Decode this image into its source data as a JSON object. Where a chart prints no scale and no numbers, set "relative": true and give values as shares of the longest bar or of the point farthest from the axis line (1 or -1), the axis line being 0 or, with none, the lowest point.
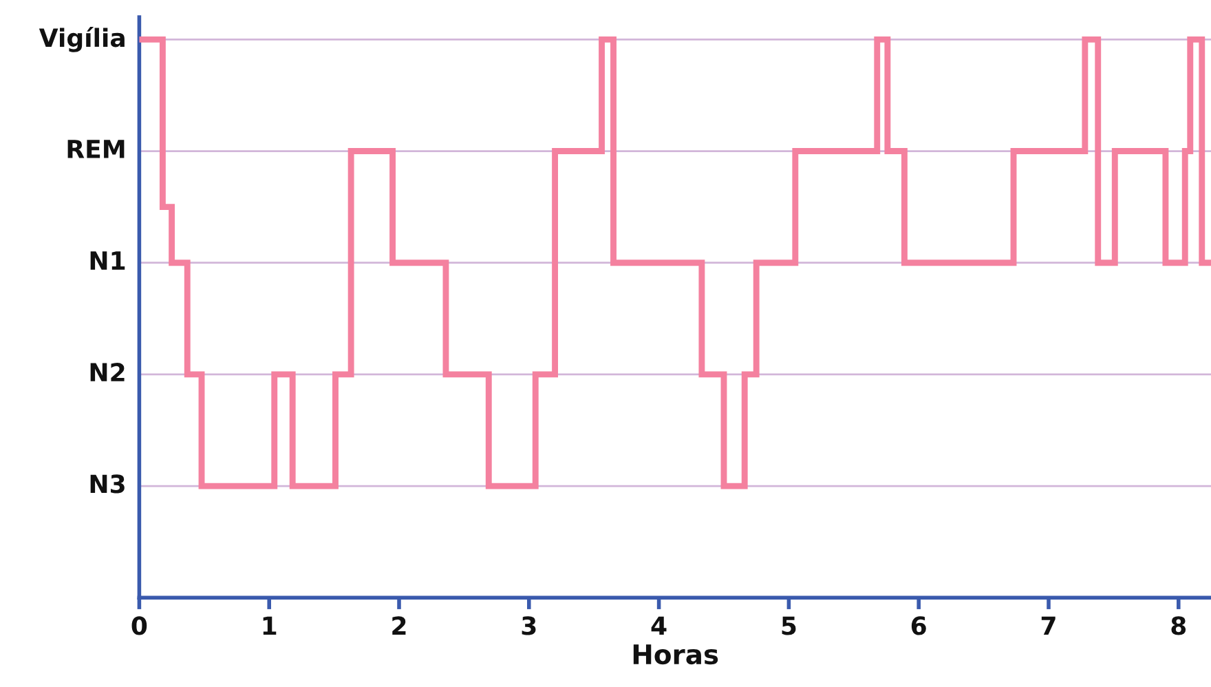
{
  "chart_data": {
    "type": "step",
    "xlabel": "Horas",
    "relative": true,
    "x": [
      0,
      0.18,
      0.25,
      0.37,
      0.48,
      1.04,
      1.18,
      1.51,
      1.63,
      1.95,
      2.36,
      2.69,
      3.05,
      3.2,
      3.56,
      3.65,
      4.33,
      4.5,
      4.66,
      4.75,
      5.05,
      5.68,
      5.76,
      5.89,
      6.73,
      7.28,
      7.38,
      7.51,
      7.9,
      8.05,
      8.09,
      8.18,
      8.25
    ],
    "series": [
      {
        "color": "#f4819f",
        "values": [
          1,
          0.7,
          0.6,
          0.4,
          0.2,
          0.4,
          0.2,
          0.4,
          0.8,
          0.6,
          0.4,
          0.2,
          0.4,
          0.8,
          1,
          0.6,
          0.4,
          0.2,
          0.4,
          0.6,
          0.8,
          1,
          0.8,
          0.6,
          0.8,
          1,
          0.6,
          0.8,
          0.6,
          0.8,
          1,
          0.6,
          0.6
        ]
      }
    ],
    "xlim": [
      0,
      8.25
    ],
    "xticks": [
      0,
      1,
      2,
      3,
      4,
      5,
      6,
      7,
      8
    ],
    "ref_lines": [
      {
        "axis": "y",
        "value": 0.2,
        "label": "N3",
        "color": "#d2b6d9"
      },
      {
        "axis": "y",
        "value": 0.4,
        "label": "N2",
        "color": "#d2b6d9"
      },
      {
        "axis": "y",
        "value": 0.6,
        "label": "N1",
        "color": "#d2b6d9"
      },
      {
        "axis": "y",
        "value": 0.8,
        "label": "REM",
        "color": "#d2b6d9"
      },
      {
        "axis": "y",
        "value": 1,
        "label": "Vigília",
        "color": "#d2b6d9"
      }
    ]
  }
}
